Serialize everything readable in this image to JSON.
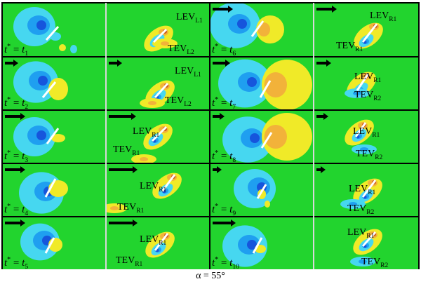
{
  "figure": {
    "caption": "α = 55°",
    "colors": {
      "background": "#22d42e",
      "negative_light": "#46d7f0",
      "negative_mid": "#1f9ff0",
      "negative_dark": "#1655dc",
      "positive_light": "#f0ea28",
      "positive_mid": "#f2b23a",
      "positive_dark": "#c85a1e",
      "plate": "#ffffff",
      "arrow": "#000000"
    },
    "panels": [
      {
        "id": "t1",
        "time_base": "t",
        "time_sub": "1",
        "arrow": false,
        "labels": []
      },
      {
        "id": "t1b",
        "arrow": false,
        "labels": [
          {
            "name": "LEV",
            "sub": "L1"
          },
          {
            "name": "TEV",
            "sub": "L2"
          }
        ]
      },
      {
        "id": "t6",
        "time_base": "t",
        "time_sub": "6",
        "arrow": true,
        "labels": []
      },
      {
        "id": "t6b",
        "arrow": true,
        "labels": [
          {
            "name": "LEV",
            "sub": "R1"
          },
          {
            "name": "TEV",
            "sub": "R1"
          }
        ]
      },
      {
        "id": "t2",
        "time_base": "t",
        "time_sub": "2",
        "arrow": true,
        "labels": []
      },
      {
        "id": "t2b",
        "arrow": true,
        "labels": [
          {
            "name": "LEV",
            "sub": "L1"
          },
          {
            "name": "TEV",
            "sub": "L2"
          }
        ]
      },
      {
        "id": "t7",
        "time_base": "t",
        "time_sub": "7",
        "arrow": true,
        "labels": []
      },
      {
        "id": "t7b",
        "arrow": true,
        "labels": [
          {
            "name": "LEV",
            "sub": "R1"
          },
          {
            "name": "TEV",
            "sub": "R2"
          }
        ]
      },
      {
        "id": "t3",
        "time_base": "t",
        "time_sub": "3",
        "arrow": true,
        "labels": []
      },
      {
        "id": "t3b",
        "arrow": true,
        "labels": [
          {
            "name": "LEV",
            "sub": "R1"
          },
          {
            "name": "TEV",
            "sub": "R1"
          }
        ]
      },
      {
        "id": "t8",
        "time_base": "t",
        "time_sub": "8",
        "arrow": true,
        "labels": []
      },
      {
        "id": "t8b",
        "arrow": true,
        "labels": [
          {
            "name": "LEV",
            "sub": "R1"
          },
          {
            "name": "TEV",
            "sub": "R2"
          }
        ]
      },
      {
        "id": "t4",
        "time_base": "t",
        "time_sub": "4",
        "arrow": true,
        "labels": []
      },
      {
        "id": "t4b",
        "arrow": true,
        "labels": [
          {
            "name": "LEV",
            "sub": "R1"
          },
          {
            "name": "TEV",
            "sub": "R1"
          }
        ]
      },
      {
        "id": "t9",
        "time_base": "t",
        "time_sub": "9",
        "arrow": true,
        "labels": []
      },
      {
        "id": "t9b",
        "arrow": true,
        "labels": [
          {
            "name": "LEV",
            "sub": "R1"
          },
          {
            "name": "TEV",
            "sub": "R2"
          }
        ]
      },
      {
        "id": "t5",
        "time_base": "t",
        "time_sub": "5",
        "arrow": true,
        "labels": []
      },
      {
        "id": "t5b",
        "arrow": true,
        "labels": [
          {
            "name": "LEV",
            "sub": "R1"
          },
          {
            "name": "TEV",
            "sub": "R1"
          }
        ]
      },
      {
        "id": "t10",
        "time_base": "t",
        "time_sub": "10",
        "arrow": true,
        "labels": []
      },
      {
        "id": "t10b",
        "arrow": true,
        "labels": [
          {
            "name": "LEV",
            "sub": "R1"
          },
          {
            "name": "TEV",
            "sub": "R2"
          }
        ]
      }
    ]
  }
}
